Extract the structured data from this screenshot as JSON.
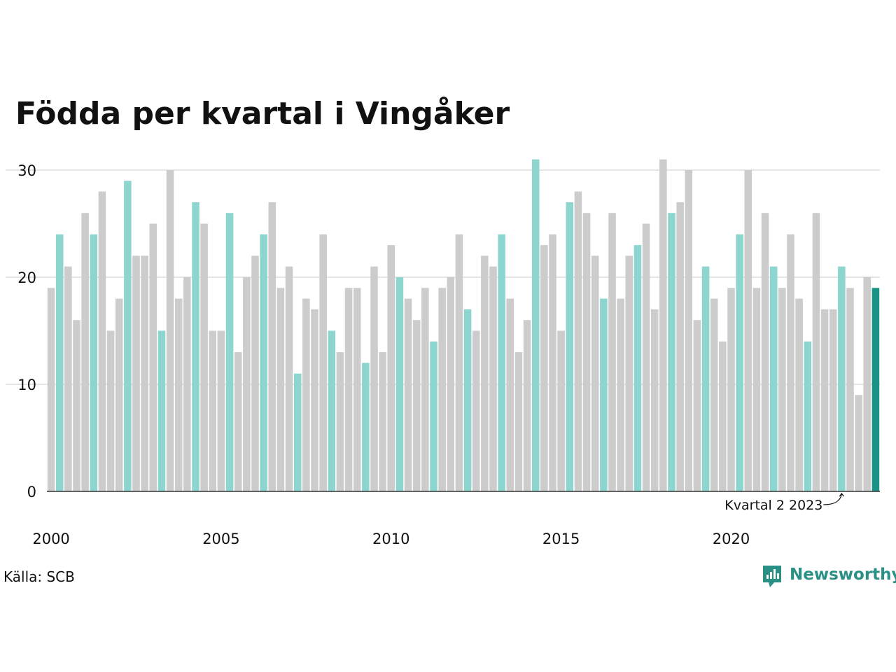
{
  "chart_data": {
    "type": "bar",
    "title": "Födda per kvartal i Vingåker",
    "xlabel": "",
    "ylabel": "",
    "ylim": [
      0,
      30
    ],
    "yticks": [
      "0",
      "10",
      "20",
      "30"
    ],
    "xtick_labels": [
      "2000",
      "2005",
      "2010",
      "2015",
      "2020"
    ],
    "grid": true,
    "start": "2000 Q1",
    "values": [
      19,
      24,
      21,
      16,
      26,
      24,
      28,
      15,
      18,
      29,
      22,
      22,
      25,
      15,
      30,
      18,
      20,
      27,
      25,
      15,
      15,
      26,
      13,
      20,
      22,
      24,
      27,
      19,
      21,
      11,
      18,
      17,
      24,
      15,
      13,
      19,
      19,
      12,
      21,
      13,
      23,
      20,
      18,
      16,
      19,
      14,
      19,
      20,
      24,
      17,
      15,
      22,
      21,
      24,
      18,
      13,
      16,
      31,
      23,
      24,
      15,
      27,
      28,
      26,
      22,
      18,
      26,
      18,
      22,
      23,
      25,
      17,
      31,
      26,
      27,
      30,
      16,
      21,
      18,
      14,
      19,
      24,
      30,
      19,
      26,
      21,
      19,
      24,
      18,
      14,
      26,
      17,
      17,
      21,
      19,
      9,
      20,
      19
    ],
    "highlight_quarter": 2,
    "colors": {
      "grey": "#cccccc",
      "highlight": "#8dd6cf",
      "latest": "#1a9386",
      "grid": "#e5e5e5",
      "axis": "#333333"
    },
    "annotation": "Kvartal 2 2023"
  },
  "source": "Källa: SCB",
  "brand": {
    "name": "Newsworthy",
    "icon": "newsworthy-logo-icon",
    "color": "#2a8f84"
  }
}
